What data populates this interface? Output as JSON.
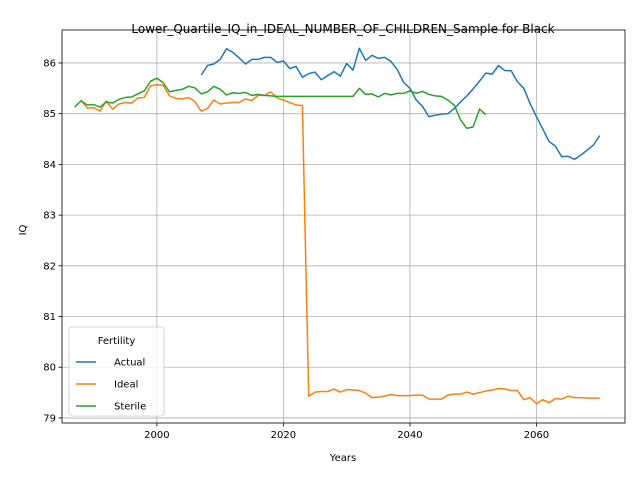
{
  "chart_data": {
    "type": "line",
    "title": "Lower_Quartile_IQ_in_IDEAL_NUMBER_OF_CHILDREN_Sample for Black",
    "xlabel": "Years",
    "ylabel": "IQ",
    "xlim": [
      1985,
      2074
    ],
    "ylim": [
      78.9,
      86.65
    ],
    "xticks": [
      2000,
      2020,
      2040,
      2060
    ],
    "yticks": [
      79,
      80,
      81,
      82,
      83,
      84,
      85,
      86
    ],
    "grid": true,
    "legend": {
      "title": "Fertility",
      "placement": "lower-left"
    },
    "series": [
      {
        "name": "Actual",
        "color": "#1f77b4",
        "x": [
          2007,
          2008,
          2009,
          2010,
          2011,
          2012,
          2013,
          2014,
          2015,
          2016,
          2017,
          2018,
          2019,
          2020,
          2021,
          2022,
          2023,
          2024,
          2025,
          2026,
          2027,
          2028,
          2029,
          2030,
          2031,
          2032,
          2033,
          2034,
          2035,
          2036,
          2037,
          2038,
          2039,
          2040,
          2041,
          2042,
          2043,
          2044,
          2045,
          2046,
          2047,
          2048,
          2049,
          2050,
          2051,
          2052,
          2053,
          2054,
          2055,
          2056,
          2057,
          2058,
          2059,
          2060,
          2061,
          2062,
          2063,
          2064,
          2065,
          2066,
          2067,
          2068,
          2069,
          2070
        ],
        "y": [
          85.76,
          85.95,
          85.98,
          86.07,
          86.28,
          86.21,
          86.1,
          85.98,
          86.07,
          86.07,
          86.11,
          86.11,
          86.01,
          86.04,
          85.89,
          85.93,
          85.72,
          85.79,
          85.82,
          85.67,
          85.75,
          85.83,
          85.74,
          85.99,
          85.86,
          86.29,
          86.05,
          86.15,
          86.09,
          86.11,
          86.03,
          85.87,
          85.62,
          85.5,
          85.27,
          85.14,
          84.94,
          84.97,
          84.99,
          85.0,
          85.1,
          85.23,
          85.35,
          85.49,
          85.64,
          85.8,
          85.78,
          85.95,
          85.85,
          85.85,
          85.63,
          85.5,
          85.2,
          84.94,
          84.7,
          84.45,
          84.36,
          84.15,
          84.16,
          84.1,
          84.18,
          84.28,
          84.38,
          84.57
        ]
      },
      {
        "name": "Ideal",
        "color": "#ff7f0e",
        "x": [
          1988,
          1989,
          1990,
          1991,
          1992,
          1993,
          1994,
          1995,
          1996,
          1997,
          1998,
          1999,
          2000,
          2001,
          2002,
          2003,
          2004,
          2005,
          2006,
          2007,
          2008,
          2009,
          2010,
          2011,
          2012,
          2013,
          2014,
          2015,
          2016,
          2017,
          2018,
          2019,
          2020,
          2021,
          2022,
          2023,
          2024,
          2025,
          2026,
          2027,
          2028,
          2029,
          2030,
          2031,
          2032,
          2033,
          2034,
          2035,
          2036,
          2037,
          2038,
          2039,
          2040,
          2041,
          2042,
          2043,
          2044,
          2045,
          2046,
          2047,
          2048,
          2049,
          2050,
          2051,
          2052,
          2053,
          2054,
          2055,
          2056,
          2057,
          2058,
          2059,
          2060,
          2061,
          2062,
          2063,
          2064,
          2065,
          2066,
          2067,
          2068,
          2069,
          2070
        ],
        "y": [
          85.27,
          85.11,
          85.12,
          85.05,
          85.25,
          85.09,
          85.19,
          85.22,
          85.21,
          85.31,
          85.32,
          85.55,
          85.57,
          85.56,
          85.35,
          85.3,
          85.29,
          85.32,
          85.24,
          85.05,
          85.1,
          85.27,
          85.19,
          85.21,
          85.22,
          85.22,
          85.29,
          85.26,
          85.36,
          85.36,
          85.43,
          85.31,
          85.27,
          85.22,
          85.17,
          85.16,
          79.43,
          79.51,
          79.52,
          79.52,
          79.57,
          79.51,
          79.56,
          79.55,
          79.54,
          79.49,
          79.4,
          79.41,
          79.43,
          79.46,
          79.44,
          79.44,
          79.44,
          79.45,
          79.45,
          79.37,
          79.37,
          79.37,
          79.45,
          79.47,
          79.47,
          79.51,
          79.47,
          79.5,
          79.53,
          79.55,
          79.58,
          79.57,
          79.54,
          79.54,
          79.36,
          79.4,
          79.28,
          79.36,
          79.3,
          79.38,
          79.37,
          79.43,
          79.4,
          79.4,
          79.39,
          79.39,
          79.39
        ]
      },
      {
        "name": "Sterile",
        "color": "#2ca02c",
        "x": [
          1987,
          1988,
          1989,
          1990,
          1991,
          1992,
          1993,
          1994,
          1995,
          1996,
          1997,
          1998,
          1999,
          2000,
          2001,
          2002,
          2003,
          2004,
          2005,
          2006,
          2007,
          2008,
          2009,
          2010,
          2011,
          2012,
          2013,
          2014,
          2015,
          2016,
          2017,
          2018,
          2019,
          2020,
          2021,
          2022,
          2023,
          2024,
          2025,
          2026,
          2027,
          2028,
          2029,
          2030,
          2031,
          2032,
          2033,
          2034,
          2035,
          2036,
          2037,
          2038,
          2039,
          2040,
          2041,
          2042,
          2043,
          2044,
          2045,
          2046,
          2047,
          2048,
          2049,
          2050,
          2051,
          2052
        ],
        "y": [
          85.13,
          85.25,
          85.17,
          85.18,
          85.13,
          85.23,
          85.21,
          85.28,
          85.32,
          85.33,
          85.39,
          85.45,
          85.64,
          85.7,
          85.61,
          85.43,
          85.46,
          85.48,
          85.54,
          85.51,
          85.39,
          85.43,
          85.54,
          85.48,
          85.37,
          85.41,
          85.4,
          85.42,
          85.36,
          85.38,
          85.36,
          85.35,
          85.34,
          85.34,
          85.34,
          85.34,
          85.34,
          85.34,
          85.34,
          85.34,
          85.34,
          85.34,
          85.34,
          85.34,
          85.34,
          85.5,
          85.38,
          85.39,
          85.33,
          85.4,
          85.37,
          85.4,
          85.4,
          85.45,
          85.4,
          85.44,
          85.38,
          85.35,
          85.34,
          85.27,
          85.17,
          84.88,
          84.71,
          84.74,
          85.09,
          84.98
        ]
      }
    ]
  }
}
